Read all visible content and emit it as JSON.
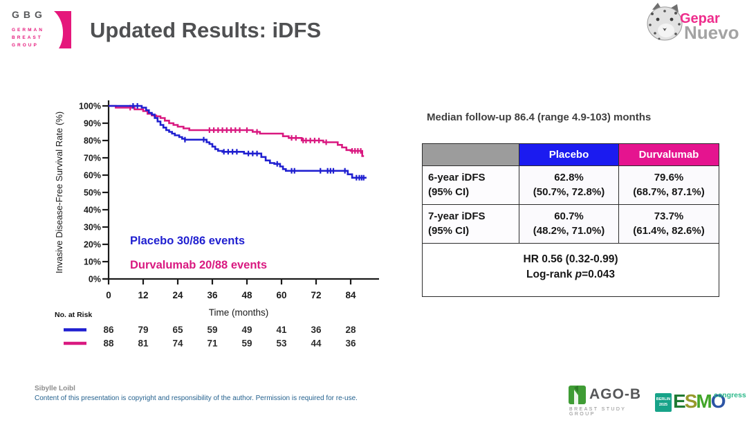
{
  "slide": {
    "title": "Updated Results: iDFS",
    "author": "Sibylle Loibl",
    "copyright": "Content of this presentation is copyright and responsibility of the author. Permission is required for re-use."
  },
  "logos": {
    "gbg": {
      "abbr": "GBG",
      "line1": "GERMAN",
      "line2": "BREAST",
      "line3": "GROUP"
    },
    "gepar": {
      "part1": "Gepar",
      "part2": "Nuevo"
    },
    "agob": {
      "name": "AGO-B",
      "subtitle": "BREAST STUDY GROUP"
    },
    "esmo": {
      "city": "BERLIN",
      "year": "2025",
      "letter_e": "E",
      "letter_s": "S",
      "letter_m": "M",
      "letter_o": "O",
      "congress": "congress"
    }
  },
  "colors": {
    "placebo_curve": "#1f1fd0",
    "durvalumab_curve": "#d91980",
    "placebo_header": "#1b1bf0",
    "durvalumab_header": "#e5148f",
    "table_header_gray": "#9c9c9c",
    "gbg_pink": "#e5177b",
    "title_gray": "#4f5052"
  },
  "followup": {
    "text": "Median follow-up 86.4 (range 4.9-103) months"
  },
  "results_table": {
    "headers": {
      "blank": "",
      "placebo": "Placebo",
      "durvalumab": "Durvalumab"
    },
    "rows": [
      {
        "label": "6-year iDFS",
        "label2": "(95% CI)",
        "placebo_value": "62.8%",
        "placebo_ci": "(50.7%, 72.8%)",
        "durva_value": "79.6%",
        "durva_ci": "(68.7%, 87.1%)"
      },
      {
        "label": "7-year iDFS",
        "label2": "(95% CI)",
        "placebo_value": "60.7%",
        "placebo_ci": "(48.2%, 71.0%)",
        "durva_value": "73.7%",
        "durva_ci": "(61.4%, 82.6%)"
      }
    ],
    "footer": {
      "hr": "HR 0.56 (0.32-0.99)",
      "logrank_prefix": "Log-rank ",
      "logrank_p": "p",
      "logrank_value": "=0.043"
    }
  },
  "chart_data": {
    "type": "line",
    "subtype": "kaplan-meier-step",
    "title": "",
    "xlabel": "Time (months)",
    "ylabel": "Invasive Disease-Free Survival Rate (%)",
    "xlim": [
      0,
      93
    ],
    "ylim": [
      0,
      100
    ],
    "xticks": [
      0,
      12,
      24,
      36,
      48,
      60,
      72,
      84
    ],
    "yticks": [
      0,
      10,
      20,
      30,
      40,
      50,
      60,
      70,
      80,
      90,
      100
    ],
    "grid": false,
    "legend_position": "inside-lower-left",
    "series": [
      {
        "name": "Placebo",
        "label": "Placebo 30/86 events",
        "color": "#1f1fd0",
        "steps": [
          [
            0,
            100
          ],
          [
            11.5,
            100
          ],
          [
            11.5,
            99
          ],
          [
            13,
            99
          ],
          [
            13,
            97.5
          ],
          [
            14,
            97.5
          ],
          [
            14,
            96
          ],
          [
            15,
            96
          ],
          [
            15,
            95
          ],
          [
            16,
            95
          ],
          [
            16,
            93
          ],
          [
            17,
            93
          ],
          [
            17,
            91
          ],
          [
            18,
            91
          ],
          [
            18,
            89
          ],
          [
            19,
            89
          ],
          [
            19,
            87.5
          ],
          [
            20,
            87.5
          ],
          [
            20,
            86
          ],
          [
            21,
            86
          ],
          [
            21,
            85
          ],
          [
            22,
            85
          ],
          [
            22,
            84
          ],
          [
            23,
            84
          ],
          [
            23,
            83
          ],
          [
            24.5,
            83
          ],
          [
            24.5,
            82
          ],
          [
            25.5,
            82
          ],
          [
            25.5,
            81
          ],
          [
            26.5,
            81
          ],
          [
            26.5,
            80.5
          ],
          [
            34,
            80.5
          ],
          [
            34,
            79
          ],
          [
            35,
            79
          ],
          [
            35,
            78
          ],
          [
            36,
            78
          ],
          [
            36,
            76.5
          ],
          [
            37,
            76.5
          ],
          [
            37,
            75
          ],
          [
            38,
            75
          ],
          [
            38,
            74
          ],
          [
            39.5,
            74
          ],
          [
            39.5,
            73.5
          ],
          [
            47,
            73.5
          ],
          [
            47,
            72.5
          ],
          [
            53,
            72.5
          ],
          [
            53,
            70.5
          ],
          [
            54.5,
            70.5
          ],
          [
            54.5,
            68.5
          ],
          [
            56,
            68.5
          ],
          [
            56,
            67
          ],
          [
            57.5,
            67
          ],
          [
            57.5,
            66.5
          ],
          [
            59.5,
            66.5
          ],
          [
            59.5,
            65
          ],
          [
            60.5,
            65
          ],
          [
            60.5,
            63.5
          ],
          [
            61.5,
            63.5
          ],
          [
            61.5,
            62.5
          ],
          [
            83,
            62.5
          ],
          [
            83,
            60.5
          ],
          [
            84.5,
            60.5
          ],
          [
            84.5,
            58.5
          ],
          [
            89.5,
            58.5
          ]
        ],
        "censors": [
          [
            8.5,
            100
          ],
          [
            10,
            100
          ],
          [
            26.5,
            80.5
          ],
          [
            33,
            80.5
          ],
          [
            40,
            73.5
          ],
          [
            41.5,
            73.5
          ],
          [
            43,
            73.5
          ],
          [
            44.5,
            73.5
          ],
          [
            48.5,
            72.5
          ],
          [
            50,
            72.5
          ],
          [
            51.5,
            72.5
          ],
          [
            58.5,
            66.5
          ],
          [
            63.5,
            62.5
          ],
          [
            64.5,
            62.5
          ],
          [
            73.5,
            62.5
          ],
          [
            76,
            62.5
          ],
          [
            77,
            62.5
          ],
          [
            78,
            62.5
          ],
          [
            82,
            62.5
          ],
          [
            86,
            58.5
          ],
          [
            87,
            58.5
          ],
          [
            87.8,
            58.5
          ],
          [
            88.5,
            58.5
          ]
        ]
      },
      {
        "name": "Durvalumab",
        "label": "Durvalumab 20/88 events",
        "color": "#d91980",
        "steps": [
          [
            0,
            100
          ],
          [
            2.5,
            100
          ],
          [
            2.5,
            99
          ],
          [
            9,
            99
          ],
          [
            9,
            98
          ],
          [
            12,
            98
          ],
          [
            12,
            97
          ],
          [
            13.5,
            97
          ],
          [
            13.5,
            95.5
          ],
          [
            15,
            95.5
          ],
          [
            15,
            94.5
          ],
          [
            16.5,
            94.5
          ],
          [
            16.5,
            94
          ],
          [
            18,
            94
          ],
          [
            18,
            93
          ],
          [
            19.5,
            93
          ],
          [
            19.5,
            91.5
          ],
          [
            21,
            91.5
          ],
          [
            21,
            90
          ],
          [
            22.5,
            90
          ],
          [
            22.5,
            89
          ],
          [
            24,
            89
          ],
          [
            24,
            88
          ],
          [
            26,
            88
          ],
          [
            26,
            87
          ],
          [
            28,
            87
          ],
          [
            28,
            86
          ],
          [
            50,
            86
          ],
          [
            50,
            85
          ],
          [
            52.5,
            85
          ],
          [
            52.5,
            84
          ],
          [
            60.5,
            84
          ],
          [
            60.5,
            82.5
          ],
          [
            62.5,
            82.5
          ],
          [
            62.5,
            81.5
          ],
          [
            67,
            81.5
          ],
          [
            67,
            80
          ],
          [
            74.5,
            80
          ],
          [
            74.5,
            79
          ],
          [
            79.5,
            79
          ],
          [
            79.5,
            77.5
          ],
          [
            81,
            77.5
          ],
          [
            81,
            76
          ],
          [
            82.5,
            76
          ],
          [
            82.5,
            74.5
          ],
          [
            84,
            74.5
          ],
          [
            84,
            74
          ],
          [
            88,
            74
          ],
          [
            88,
            71
          ],
          [
            88.6,
            71
          ]
        ],
        "censors": [
          [
            7.5,
            99
          ],
          [
            35,
            86
          ],
          [
            36.5,
            86
          ],
          [
            38,
            86
          ],
          [
            39.5,
            86
          ],
          [
            41,
            86
          ],
          [
            42.5,
            86
          ],
          [
            44,
            86
          ],
          [
            45.5,
            86
          ],
          [
            48,
            86
          ],
          [
            51.5,
            85
          ],
          [
            63.5,
            81.5
          ],
          [
            65,
            81.5
          ],
          [
            67.5,
            80
          ],
          [
            68.5,
            80
          ],
          [
            70,
            80
          ],
          [
            71.5,
            80
          ],
          [
            73,
            80
          ],
          [
            75.5,
            79
          ],
          [
            84.5,
            74
          ],
          [
            85.5,
            74
          ],
          [
            86.5,
            74
          ],
          [
            87.5,
            74
          ]
        ]
      }
    ],
    "at_risk": {
      "title": "No. at Risk",
      "rows": [
        {
          "name": "Placebo",
          "color": "#1f1fd0",
          "values": [
            86,
            79,
            65,
            59,
            49,
            41,
            36,
            28
          ]
        },
        {
          "name": "Durvalumab",
          "color": "#d91980",
          "values": [
            88,
            81,
            74,
            71,
            59,
            53,
            44,
            36
          ]
        }
      ]
    }
  }
}
